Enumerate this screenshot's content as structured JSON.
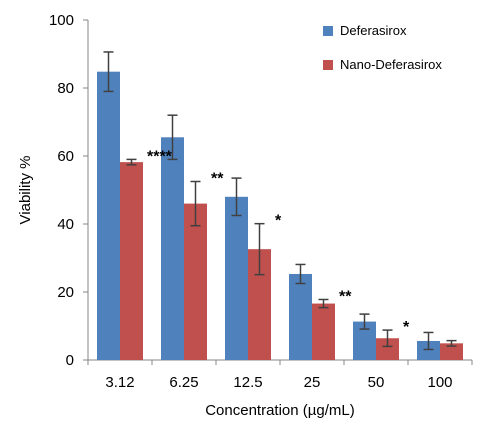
{
  "chart_data": {
    "type": "bar",
    "title": "",
    "xlabel": "Concentration (µg/mL)",
    "ylabel": "Viability %",
    "ylim": [
      0,
      100
    ],
    "yticks": [
      0,
      20,
      40,
      60,
      80,
      100
    ],
    "grid": false,
    "legend_position": "top-right",
    "categories": [
      "3.12",
      "6.25",
      "12.5",
      "25",
      "50",
      "100"
    ],
    "series": [
      {
        "name": "Deferasirox",
        "color": "#4F81BD",
        "values": [
          84.8,
          65.5,
          48.0,
          25.3,
          11.3,
          5.6
        ],
        "errors": [
          5.8,
          6.5,
          5.5,
          2.8,
          2.2,
          2.5
        ]
      },
      {
        "name": "Nano-Deferasirox",
        "color": "#C0504D",
        "values": [
          58.2,
          46.0,
          32.6,
          16.6,
          6.4,
          4.9
        ],
        "errors": [
          0.8,
          6.5,
          7.5,
          1.2,
          2.4,
          0.8
        ]
      }
    ],
    "significance": [
      "****",
      "**",
      "*",
      "**",
      "*",
      ""
    ]
  }
}
